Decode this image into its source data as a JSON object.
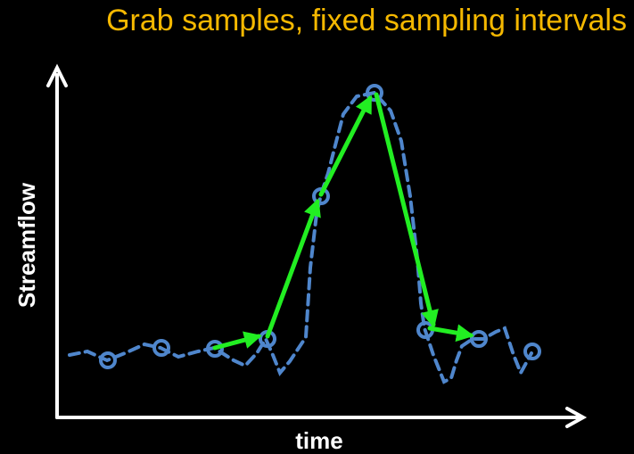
{
  "title": "Grab samples, fixed sampling intervals",
  "axes": {
    "x_label": "time",
    "y_label": "Streamflow"
  },
  "colors": {
    "background": "#000000",
    "title": "#f5b800",
    "axes": "#ffffff",
    "hydrograph": "#4f86cc",
    "arrows": "#22ee22"
  }
}
